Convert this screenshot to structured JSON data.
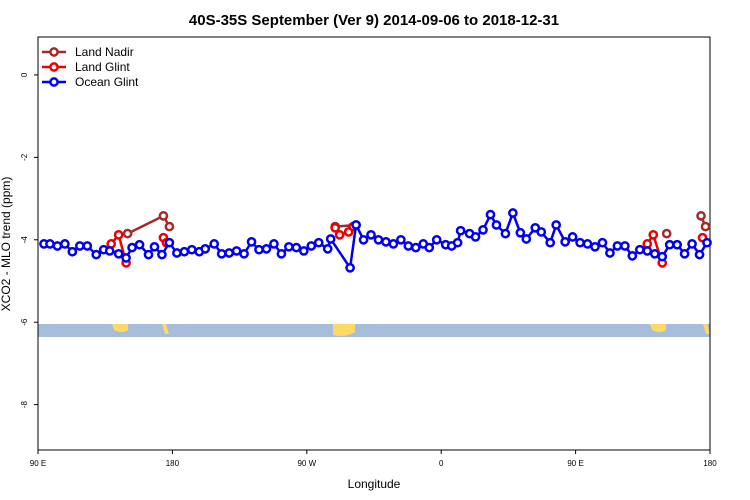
{
  "chart_data": {
    "type": "line",
    "title": "40S-35S September (Ver 9)   2014-09-06 to 2018-12-31",
    "xlabel": "Longitude",
    "ylabel": "XCO2 - MLO trend (ppm)",
    "xlim": [
      90,
      540
    ],
    "ylim": [
      -9.1,
      0.92
    ],
    "xticks": [
      {
        "value": 90,
        "label": "90 E"
      },
      {
        "value": 180,
        "label": "180"
      },
      {
        "value": 270,
        "label": "90 W"
      },
      {
        "value": 360,
        "label": "0"
      },
      {
        "value": 450,
        "label": "90 E"
      },
      {
        "value": 540,
        "label": "180"
      }
    ],
    "yticks": [
      0,
      -2,
      -4,
      -6,
      -8
    ],
    "legend": "top-left",
    "series": [
      {
        "name": "Land Nadir",
        "color": "#a52a2a",
        "x": [
          150,
          174,
          178,
          null,
          289,
          303,
          null,
          511,
          null,
          534,
          537
        ],
        "values": [
          -3.85,
          -3.42,
          -3.68,
          null,
          -3.68,
          -3.64,
          null,
          -3.85,
          null,
          -3.42,
          -3.68
        ]
      },
      {
        "name": "Land Glint",
        "color": "#ee0000",
        "x": [
          139,
          144,
          149,
          null,
          174,
          176,
          null,
          289,
          292,
          298,
          301,
          null,
          498,
          502,
          508,
          null,
          535
        ],
        "values": [
          -4.1,
          -3.88,
          -4.56,
          null,
          -3.95,
          -4.07,
          null,
          -3.71,
          -3.88,
          -3.81,
          -3.68,
          null,
          -4.1,
          -3.88,
          -4.56,
          null,
          -3.95
        ]
      },
      {
        "name": "Ocean Glint",
        "color": "#0000ee",
        "x": [
          94,
          98,
          103,
          108,
          113,
          118,
          123,
          129,
          134,
          138,
          144,
          149,
          153,
          158,
          164,
          168,
          173,
          178,
          183,
          188,
          193,
          198,
          202,
          208,
          213,
          218,
          223,
          228,
          233,
          238,
          243,
          248,
          253,
          258,
          263,
          268,
          273,
          278,
          284,
          286,
          299,
          303,
          308,
          313,
          318,
          323,
          328,
          333,
          338,
          343,
          348,
          352,
          357,
          363,
          367,
          371,
          373,
          379,
          383,
          388,
          393,
          397,
          403,
          408,
          413,
          417,
          423,
          427,
          433,
          437,
          443,
          448,
          453,
          458,
          463,
          468,
          473,
          478,
          483,
          488,
          493,
          498,
          503,
          508,
          513,
          518,
          523,
          528,
          533,
          538
        ],
        "values": [
          -4.1,
          -4.1,
          -4.15,
          -4.1,
          -4.29,
          -4.15,
          -4.15,
          -4.36,
          -4.24,
          -4.27,
          -4.34,
          -4.44,
          -4.19,
          -4.12,
          -4.36,
          -4.17,
          -4.36,
          -4.07,
          -4.32,
          -4.29,
          -4.24,
          -4.29,
          -4.22,
          -4.1,
          -4.34,
          -4.32,
          -4.27,
          -4.34,
          -4.05,
          -4.24,
          -4.22,
          -4.1,
          -4.34,
          -4.17,
          -4.19,
          -4.27,
          -4.15,
          -4.07,
          -4.22,
          -3.98,
          -4.68,
          -3.64,
          -4.0,
          -3.88,
          -4.0,
          -4.05,
          -4.1,
          -4.0,
          -4.15,
          -4.19,
          -4.1,
          -4.19,
          -4.0,
          -4.12,
          -4.15,
          -4.07,
          -3.78,
          -3.85,
          -3.93,
          -3.76,
          -3.39,
          -3.64,
          -3.85,
          -3.35,
          -3.83,
          -3.98,
          -3.71,
          -3.81,
          -4.07,
          -3.64,
          -4.05,
          -3.93,
          -4.07,
          -4.1,
          -4.17,
          -4.07,
          -4.32,
          -4.15,
          -4.15,
          -4.39,
          -4.24,
          -4.27,
          -4.34,
          -4.41,
          -4.12,
          -4.12,
          -4.34,
          -4.1,
          -4.36,
          -4.07
        ]
      }
    ]
  }
}
